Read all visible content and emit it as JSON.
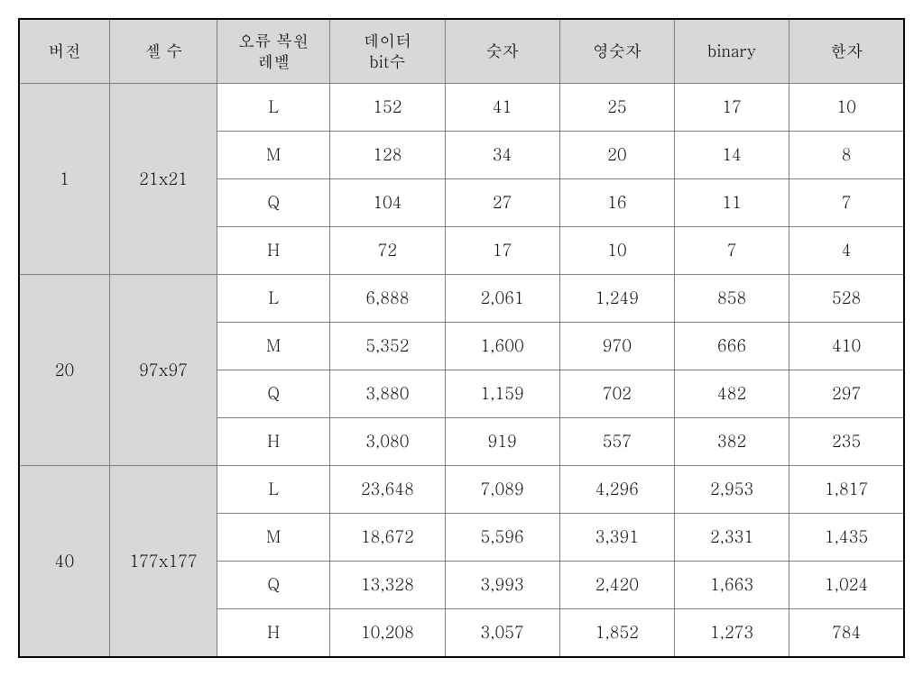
{
  "table": {
    "type": "table",
    "background_color": "#ffffff",
    "header_bg": "#d8d8d8",
    "group_bg": "#d8d8d8",
    "border_color": "#808080",
    "outer_border_color": "#000000",
    "font_size": 18,
    "columns": [
      {
        "key": "version",
        "label": "버전"
      },
      {
        "key": "cells",
        "label": "셀 수"
      },
      {
        "key": "ecc",
        "label": "오류 복원\n레벨"
      },
      {
        "key": "bits",
        "label": "데이터\nbit수"
      },
      {
        "key": "numeric",
        "label": "숫자"
      },
      {
        "key": "alnum",
        "label": "영숫자"
      },
      {
        "key": "binary",
        "label": "binary"
      },
      {
        "key": "kanji",
        "label": "한자"
      }
    ],
    "groups": [
      {
        "version": "1",
        "cells": "21x21",
        "rows": [
          {
            "ecc": "L",
            "bits": "152",
            "numeric": "41",
            "alnum": "25",
            "binary": "17",
            "kanji": "10"
          },
          {
            "ecc": "M",
            "bits": "128",
            "numeric": "34",
            "alnum": "20",
            "binary": "14",
            "kanji": "8"
          },
          {
            "ecc": "Q",
            "bits": "104",
            "numeric": "27",
            "alnum": "16",
            "binary": "11",
            "kanji": "7"
          },
          {
            "ecc": "H",
            "bits": "72",
            "numeric": "17",
            "alnum": "10",
            "binary": "7",
            "kanji": "4"
          }
        ]
      },
      {
        "version": "20",
        "cells": "97x97",
        "rows": [
          {
            "ecc": "L",
            "bits": "6,888",
            "numeric": "2,061",
            "alnum": "1,249",
            "binary": "858",
            "kanji": "528"
          },
          {
            "ecc": "M",
            "bits": "5,352",
            "numeric": "1,600",
            "alnum": "970",
            "binary": "666",
            "kanji": "410"
          },
          {
            "ecc": "Q",
            "bits": "3,880",
            "numeric": "1,159",
            "alnum": "702",
            "binary": "482",
            "kanji": "297"
          },
          {
            "ecc": "H",
            "bits": "3,080",
            "numeric": "919",
            "alnum": "557",
            "binary": "382",
            "kanji": "235"
          }
        ]
      },
      {
        "version": "40",
        "cells": "177x177",
        "rows": [
          {
            "ecc": "L",
            "bits": "23,648",
            "numeric": "7,089",
            "alnum": "4,296",
            "binary": "2,953",
            "kanji": "1,817"
          },
          {
            "ecc": "M",
            "bits": "18,672",
            "numeric": "5,596",
            "alnum": "3,391",
            "binary": "2,331",
            "kanji": "1,435"
          },
          {
            "ecc": "Q",
            "bits": "13,328",
            "numeric": "3,993",
            "alnum": "2,420",
            "binary": "1,663",
            "kanji": "1,024"
          },
          {
            "ecc": "H",
            "bits": "10,208",
            "numeric": "3,057",
            "alnum": "1,852",
            "binary": "1,273",
            "kanji": "784"
          }
        ]
      }
    ]
  }
}
